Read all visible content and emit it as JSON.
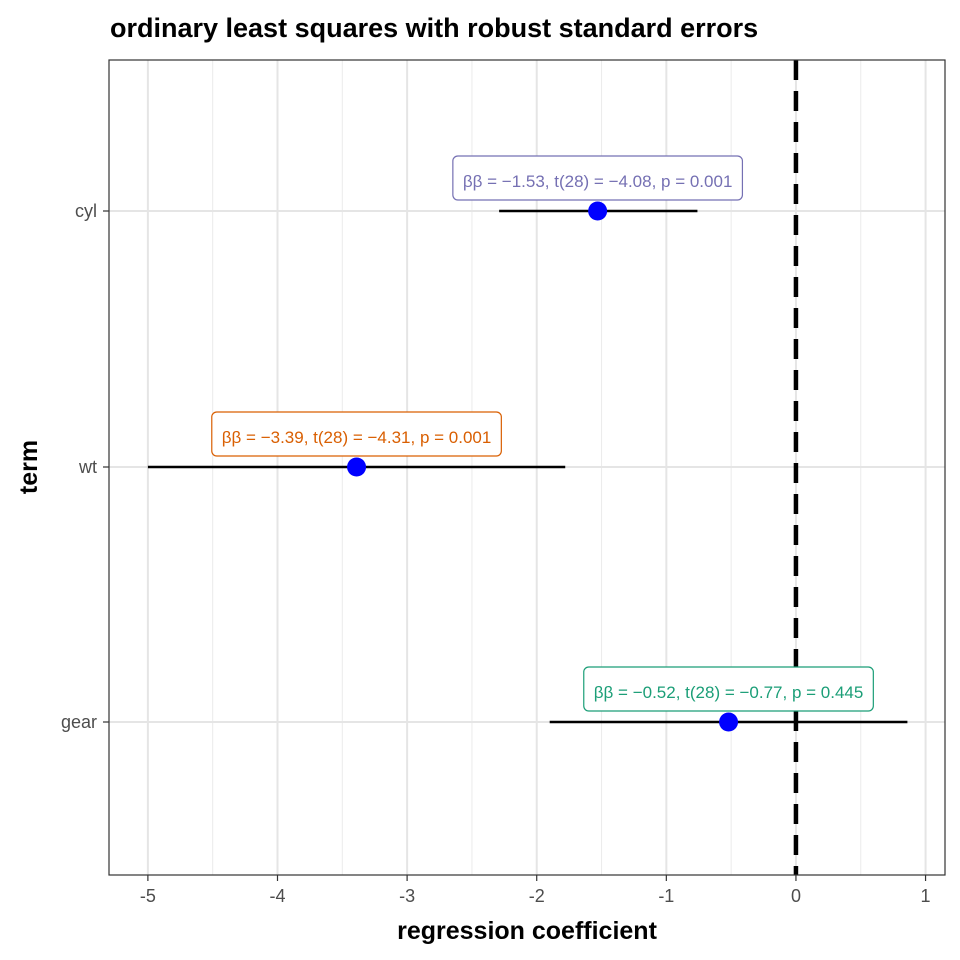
{
  "chart_data": {
    "type": "coefficient-plot",
    "title": "ordinary least squares with robust standard errors",
    "xlabel": "regression coefficient",
    "ylabel": "term",
    "xlim": [
      -5.3,
      1.15
    ],
    "x_ticks": [
      -5,
      -4,
      -3,
      -2,
      -1,
      0,
      1
    ],
    "x_tick_labels": [
      "-5",
      "-4",
      "-3",
      "-2",
      "-1",
      "0",
      "1"
    ],
    "grid": true,
    "reference_line": {
      "x": 0,
      "style": "dashed",
      "color": "#000000"
    },
    "point_color": "#0000ff",
    "terms": [
      {
        "term": "cyl",
        "estimate": -1.53,
        "conf_low": -2.29,
        "conf_high": -0.76,
        "label": "ββ = −1.53, t(28) = −4.08, p = 0.001",
        "label_color": "#7570b3"
      },
      {
        "term": "wt",
        "estimate": -3.39,
        "conf_low": -5.0,
        "conf_high": -1.78,
        "label": "ββ = −3.39, t(28) = −4.31, p = 0.001",
        "label_color": "#d95f02"
      },
      {
        "term": "gear",
        "estimate": -0.52,
        "conf_low": -1.9,
        "conf_high": 0.86,
        "label": "ββ = −0.52, t(28) = −0.77, p = 0.445",
        "label_color": "#1b9e77"
      }
    ]
  }
}
